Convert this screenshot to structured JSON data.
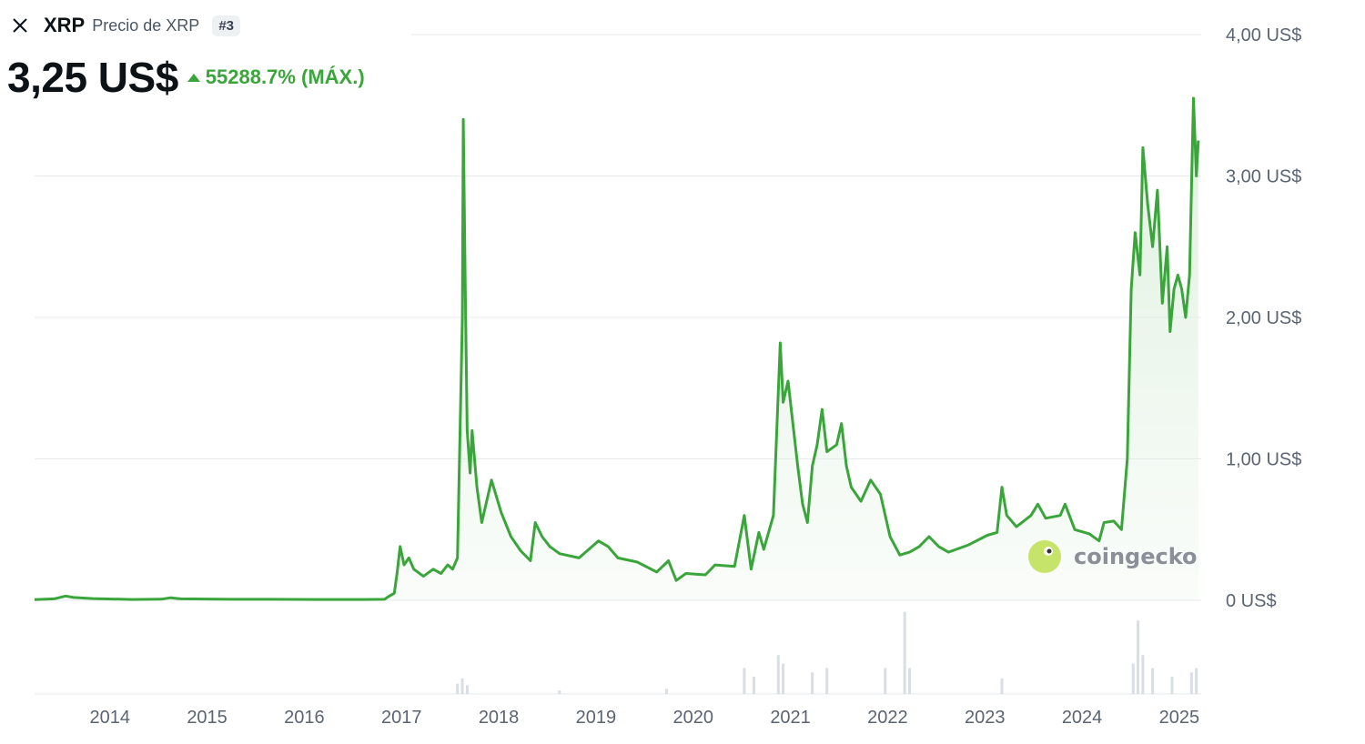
{
  "header": {
    "symbol": "XRP",
    "subtitle": "Precio de XRP",
    "rank": "#3",
    "close_icon": "close-icon"
  },
  "price": {
    "value": "3,25 US$",
    "change": "55288.7% (MÁX.)",
    "change_direction": "up"
  },
  "watermark": {
    "text": "coingecko",
    "icon": "gecko-logo-icon"
  },
  "colors": {
    "line": "#3aa53a",
    "fill": "#dff0df",
    "grid": "#e6e9ee",
    "volume": "#d9dde4",
    "axis_text": "#5b6473",
    "up": "#3aa53a"
  },
  "chart_data": {
    "type": "area",
    "title": "",
    "xlabel": "",
    "ylabel": "",
    "ylim": [
      0,
      4
    ],
    "grid": true,
    "y_ticks": [
      {
        "value": 4,
        "label": "4,00 US$"
      },
      {
        "value": 3,
        "label": "3,00 US$"
      },
      {
        "value": 2,
        "label": "2,00 US$"
      },
      {
        "value": 1,
        "label": "1,00 US$"
      },
      {
        "value": 0,
        "label": "0 US$"
      }
    ],
    "x_ticks": [
      {
        "value": 2014.0,
        "label": "2014"
      },
      {
        "value": 2015.0,
        "label": "2015"
      },
      {
        "value": 2016.0,
        "label": "2016"
      },
      {
        "value": 2017.0,
        "label": "2017"
      },
      {
        "value": 2018.0,
        "label": "2018"
      },
      {
        "value": 2019.0,
        "label": "2019"
      },
      {
        "value": 2020.0,
        "label": "2020"
      },
      {
        "value": 2021.0,
        "label": "2021"
      },
      {
        "value": 2022.0,
        "label": "2022"
      },
      {
        "value": 2023.0,
        "label": "2023"
      },
      {
        "value": 2024.0,
        "label": "2024"
      },
      {
        "value": 2025.0,
        "label": "2025"
      }
    ],
    "xlim": [
      2013.6,
      2025.6
    ],
    "series": [
      {
        "points": [
          [
            2013.6,
            0.005
          ],
          [
            2013.8,
            0.01
          ],
          [
            2013.92,
            0.03
          ],
          [
            2014.0,
            0.02
          ],
          [
            2014.2,
            0.012
          ],
          [
            2014.6,
            0.006
          ],
          [
            2014.9,
            0.008
          ],
          [
            2015.0,
            0.018
          ],
          [
            2015.1,
            0.01
          ],
          [
            2015.5,
            0.008
          ],
          [
            2016.0,
            0.007
          ],
          [
            2016.5,
            0.006
          ],
          [
            2017.0,
            0.006
          ],
          [
            2017.2,
            0.007
          ],
          [
            2017.25,
            0.03
          ],
          [
            2017.3,
            0.05
          ],
          [
            2017.33,
            0.2
          ],
          [
            2017.36,
            0.38
          ],
          [
            2017.4,
            0.25
          ],
          [
            2017.45,
            0.3
          ],
          [
            2017.5,
            0.22
          ],
          [
            2017.6,
            0.17
          ],
          [
            2017.7,
            0.22
          ],
          [
            2017.78,
            0.19
          ],
          [
            2017.85,
            0.25
          ],
          [
            2017.9,
            0.22
          ],
          [
            2017.95,
            0.3
          ],
          [
            2018.0,
            2.0
          ],
          [
            2018.01,
            3.4
          ],
          [
            2018.03,
            2.2
          ],
          [
            2018.05,
            1.2
          ],
          [
            2018.08,
            0.9
          ],
          [
            2018.1,
            1.2
          ],
          [
            2018.15,
            0.8
          ],
          [
            2018.2,
            0.55
          ],
          [
            2018.25,
            0.7
          ],
          [
            2018.3,
            0.85
          ],
          [
            2018.4,
            0.62
          ],
          [
            2018.5,
            0.45
          ],
          [
            2018.6,
            0.35
          ],
          [
            2018.7,
            0.28
          ],
          [
            2018.75,
            0.55
          ],
          [
            2018.82,
            0.45
          ],
          [
            2018.9,
            0.38
          ],
          [
            2019.0,
            0.33
          ],
          [
            2019.2,
            0.3
          ],
          [
            2019.4,
            0.42
          ],
          [
            2019.5,
            0.38
          ],
          [
            2019.6,
            0.3
          ],
          [
            2019.8,
            0.27
          ],
          [
            2020.0,
            0.2
          ],
          [
            2020.12,
            0.28
          ],
          [
            2020.2,
            0.14
          ],
          [
            2020.3,
            0.19
          ],
          [
            2020.5,
            0.18
          ],
          [
            2020.6,
            0.25
          ],
          [
            2020.8,
            0.24
          ],
          [
            2020.9,
            0.6
          ],
          [
            2020.97,
            0.22
          ],
          [
            2021.05,
            0.48
          ],
          [
            2021.1,
            0.36
          ],
          [
            2021.2,
            0.6
          ],
          [
            2021.27,
            1.82
          ],
          [
            2021.3,
            1.4
          ],
          [
            2021.35,
            1.55
          ],
          [
            2021.45,
            0.95
          ],
          [
            2021.5,
            0.68
          ],
          [
            2021.55,
            0.55
          ],
          [
            2021.6,
            0.95
          ],
          [
            2021.65,
            1.1
          ],
          [
            2021.7,
            1.35
          ],
          [
            2021.75,
            1.05
          ],
          [
            2021.85,
            1.1
          ],
          [
            2021.9,
            1.25
          ],
          [
            2021.95,
            0.95
          ],
          [
            2022.0,
            0.8
          ],
          [
            2022.1,
            0.7
          ],
          [
            2022.2,
            0.85
          ],
          [
            2022.3,
            0.75
          ],
          [
            2022.4,
            0.45
          ],
          [
            2022.5,
            0.32
          ],
          [
            2022.6,
            0.34
          ],
          [
            2022.7,
            0.38
          ],
          [
            2022.8,
            0.45
          ],
          [
            2022.9,
            0.38
          ],
          [
            2023.0,
            0.34
          ],
          [
            2023.2,
            0.39
          ],
          [
            2023.4,
            0.46
          ],
          [
            2023.5,
            0.48
          ],
          [
            2023.55,
            0.8
          ],
          [
            2023.6,
            0.6
          ],
          [
            2023.7,
            0.52
          ],
          [
            2023.85,
            0.6
          ],
          [
            2023.92,
            0.68
          ],
          [
            2024.0,
            0.58
          ],
          [
            2024.15,
            0.6
          ],
          [
            2024.2,
            0.68
          ],
          [
            2024.3,
            0.5
          ],
          [
            2024.45,
            0.47
          ],
          [
            2024.55,
            0.42
          ],
          [
            2024.6,
            0.55
          ],
          [
            2024.7,
            0.56
          ],
          [
            2024.78,
            0.5
          ],
          [
            2024.84,
            1.0
          ],
          [
            2024.88,
            2.2
          ],
          [
            2024.92,
            2.6
          ],
          [
            2024.97,
            2.3
          ],
          [
            2025.0,
            3.2
          ],
          [
            2025.05,
            2.8
          ],
          [
            2025.1,
            2.5
          ],
          [
            2025.15,
            2.9
          ],
          [
            2025.2,
            2.1
          ],
          [
            2025.25,
            2.5
          ],
          [
            2025.28,
            1.9
          ],
          [
            2025.32,
            2.2
          ],
          [
            2025.36,
            2.3
          ],
          [
            2025.4,
            2.2
          ],
          [
            2025.44,
            2.0
          ],
          [
            2025.48,
            2.3
          ],
          [
            2025.52,
            3.55
          ],
          [
            2025.55,
            3.0
          ],
          [
            2025.57,
            3.25
          ]
        ]
      }
    ],
    "volume": [
      [
        2017.95,
        0.12
      ],
      [
        2018.0,
        0.18
      ],
      [
        2018.05,
        0.1
      ],
      [
        2019.0,
        0.04
      ],
      [
        2020.1,
        0.06
      ],
      [
        2020.9,
        0.3
      ],
      [
        2021.0,
        0.2
      ],
      [
        2021.25,
        0.45
      ],
      [
        2021.3,
        0.35
      ],
      [
        2021.6,
        0.25
      ],
      [
        2021.75,
        0.3
      ],
      [
        2022.35,
        0.3
      ],
      [
        2022.55,
        0.95
      ],
      [
        2022.6,
        0.3
      ],
      [
        2023.55,
        0.18
      ],
      [
        2024.9,
        0.35
      ],
      [
        2024.95,
        0.85
      ],
      [
        2025.0,
        0.45
      ],
      [
        2025.1,
        0.3
      ],
      [
        2025.3,
        0.2
      ],
      [
        2025.5,
        0.25
      ],
      [
        2025.55,
        0.3
      ]
    ]
  }
}
